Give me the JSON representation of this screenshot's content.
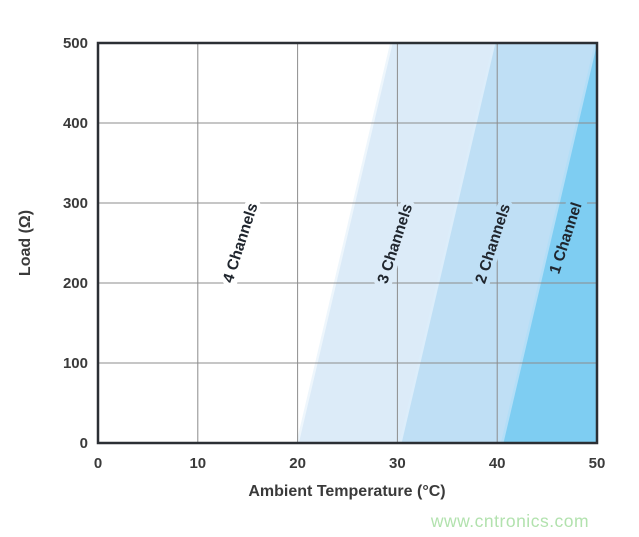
{
  "chart_data": {
    "type": "area",
    "title": "",
    "xlabel": "Ambient Temperature (°C)",
    "ylabel": "Load (Ω)",
    "xlim": [
      0,
      50
    ],
    "ylim": [
      0,
      500
    ],
    "xticks": [
      0,
      10,
      20,
      30,
      40,
      50
    ],
    "yticks": [
      0,
      100,
      200,
      300,
      400,
      500
    ],
    "grid": true,
    "legend": "none",
    "label_rotation_deg": -72,
    "regions": [
      {
        "label": "4 Channels",
        "fill": "#ffffff",
        "label_x": 14.3,
        "label_y": 250
      },
      {
        "label": "3 Channels",
        "fill": "#dcebf8",
        "label_x": 29.8,
        "label_y": 249,
        "boundary": {
          "x_at_load0": 20.0,
          "x_at_load500": 29.4
        },
        "edge_highlight": "#eef6fc"
      },
      {
        "label": "2 Channels",
        "fill": "#bfdff5",
        "label_x": 39.6,
        "label_y": 249,
        "boundary": {
          "x_at_load0": 30.3,
          "x_at_load500": 39.7
        },
        "edge_highlight": "#dcedfa"
      },
      {
        "label": "1 Channel",
        "fill": "#7ecdf2",
        "label_x": 46.9,
        "label_y": 256,
        "boundary": {
          "x_at_load0": 40.5,
          "x_at_load500": 49.9
        },
        "edge_highlight": "#b3def7"
      }
    ]
  },
  "watermark": "www.cntronics.com",
  "colors": {
    "plot_background": "#ffffff",
    "grid": "#8c8c8c",
    "border": "#2b2f34",
    "tick_text": "#3a3a3a",
    "axis_title_text": "#3a3a3a",
    "region_label_text": "#20262e",
    "watermark_text": "#b2e2ae"
  }
}
